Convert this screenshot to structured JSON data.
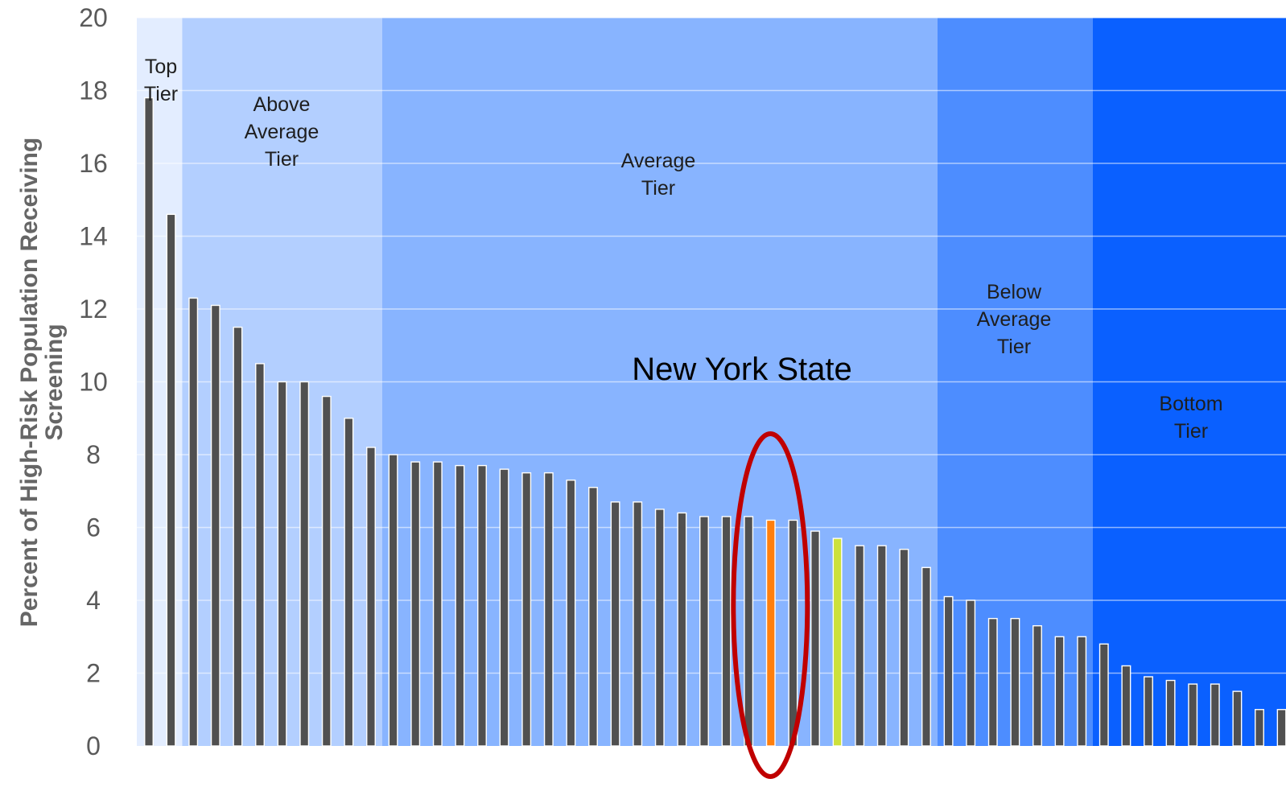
{
  "chart_data": {
    "type": "bar",
    "title": "",
    "xlabel": "",
    "ylabel_lines": [
      "Percent of High-Risk Population Receiving",
      "Screening"
    ],
    "ylim": [
      0,
      20
    ],
    "yticks": [
      0,
      2,
      4,
      6,
      8,
      10,
      12,
      14,
      16,
      18,
      20
    ],
    "grid": true,
    "values": [
      17.8,
      14.6,
      12.3,
      12.1,
      11.5,
      10.5,
      10.0,
      10.0,
      9.6,
      9.0,
      8.2,
      8.0,
      7.8,
      7.8,
      7.7,
      7.7,
      7.6,
      7.5,
      7.5,
      7.3,
      7.1,
      6.7,
      6.7,
      6.5,
      6.4,
      6.3,
      6.3,
      6.3,
      6.2,
      6.2,
      5.9,
      5.7,
      5.5,
      5.5,
      5.4,
      4.9,
      4.1,
      4.0,
      3.5,
      3.5,
      3.3,
      3.0,
      3.0,
      2.8,
      2.2,
      1.9,
      1.8,
      1.7,
      1.7,
      1.5,
      1.0,
      1.0
    ],
    "highlight_indices": {
      "28": "#ff7f0e",
      "31": "#cde13c"
    },
    "bar_color": "#505050",
    "tiers": [
      {
        "label_lines": [
          "Top",
          "Tier"
        ],
        "start": 0,
        "end": 2,
        "color": "#e3edff"
      },
      {
        "label_lines": [
          "Above",
          "Average",
          "Tier"
        ],
        "start": 2,
        "end": 11,
        "color": "#b3cfff"
      },
      {
        "label_lines": [
          "Average",
          "Tier"
        ],
        "start": 11,
        "end": 36,
        "color": "#88b4ff"
      },
      {
        "label_lines": [
          "Below",
          "Average",
          "Tier"
        ],
        "start": 36,
        "end": 43,
        "color": "#4d8dff"
      },
      {
        "label_lines": [
          "Bottom",
          "Tier"
        ],
        "start": 43,
        "end": 52,
        "color": "#0a60ff"
      }
    ],
    "annotation": {
      "text": "New York State",
      "index": 28,
      "ring_color": "#c00000"
    }
  }
}
